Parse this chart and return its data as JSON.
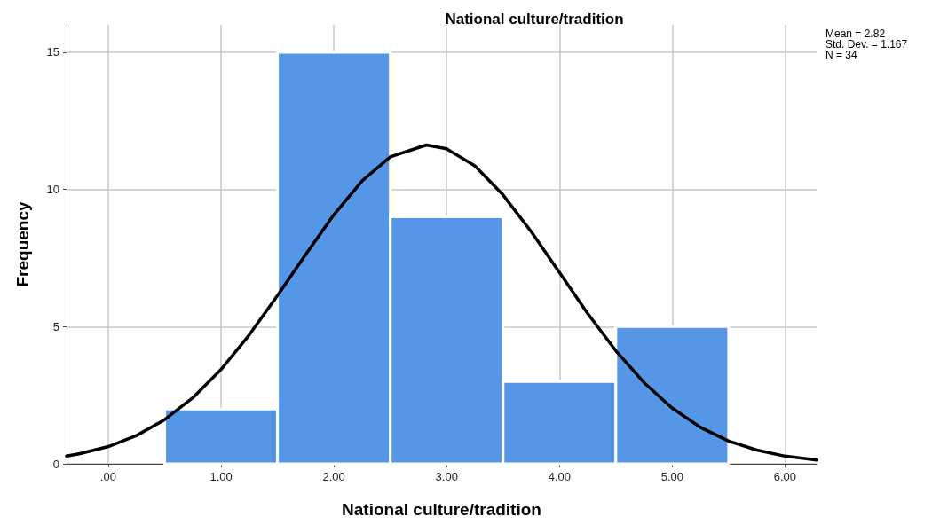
{
  "chart_data": {
    "type": "histogram",
    "title": "National culture/tradition",
    "xlabel": "National culture/tradition",
    "ylabel": "Frequency",
    "annotations": [
      "Mean = 2.82",
      "Std. Dev. = 1.167",
      "N = 34"
    ],
    "xlim": [
      -0.37,
      6.28
    ],
    "xticks": [
      {
        "value": 0,
        "label": ".00"
      },
      {
        "value": 1,
        "label": "1.00"
      },
      {
        "value": 2,
        "label": "2.00"
      },
      {
        "value": 3,
        "label": "3.00"
      },
      {
        "value": 4,
        "label": "4.00"
      },
      {
        "value": 5,
        "label": "5.00"
      },
      {
        "value": 6,
        "label": "6.00"
      }
    ],
    "ylim": [
      0,
      16
    ],
    "yticks": [
      0,
      5,
      10,
      15
    ],
    "grid": true,
    "series": [
      {
        "color": "#5596e6",
        "bins": [
          0.5,
          1.5,
          2.5,
          3.5,
          4.5,
          5.5
        ],
        "values": [
          2,
          15,
          9,
          3,
          5
        ]
      },
      {
        "type": "line",
        "color": "#000000",
        "line_style": "solid",
        "marker": "none",
        "x": [
          -0.37,
          -0.25,
          0,
          0.25,
          0.5,
          0.75,
          1,
          1.25,
          1.5,
          1.75,
          2,
          2.25,
          2.5,
          2.82,
          3,
          3.25,
          3.5,
          3.75,
          4,
          4.25,
          4.5,
          4.75,
          5,
          5.25,
          5.5,
          5.75,
          6,
          6.28
        ],
        "values": [
          0.28,
          0.37,
          0.63,
          1.03,
          1.61,
          2.41,
          3.44,
          4.7,
          6.13,
          7.63,
          9.08,
          10.31,
          11.19,
          11.62,
          11.48,
          10.86,
          9.8,
          8.46,
          6.97,
          5.48,
          4.12,
          2.96,
          2.03,
          1.33,
          0.83,
          0.5,
          0.28,
          0.14
        ]
      }
    ]
  }
}
